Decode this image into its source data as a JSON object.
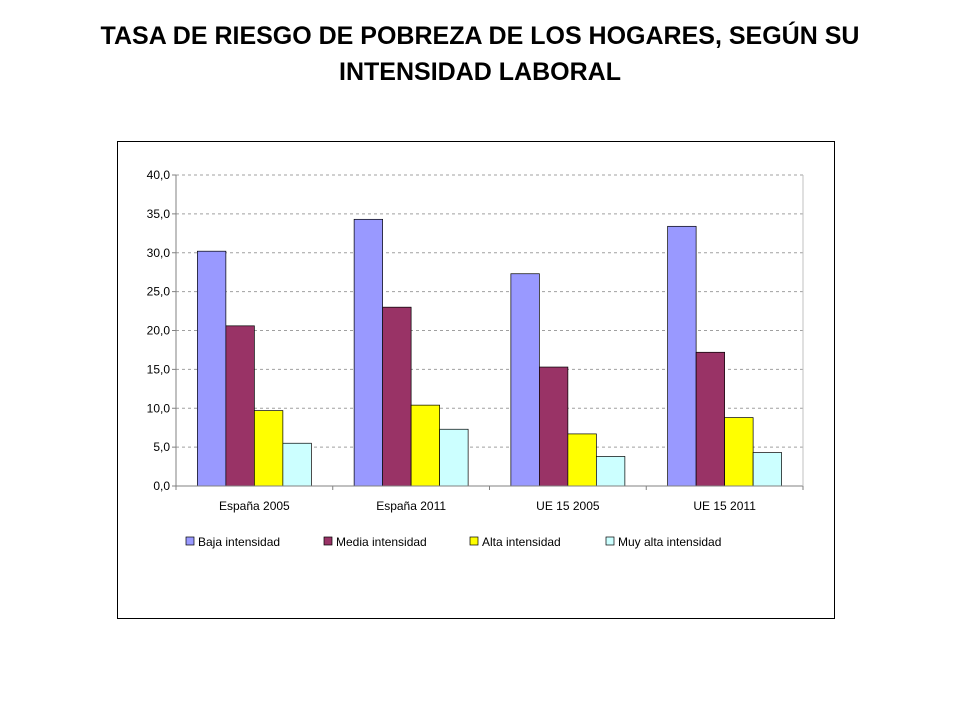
{
  "title": "TASA DE RIESGO DE POBREZA DE LOS HOGARES, SEGÚN SU INTENSIDAD LABORAL",
  "chart_data": {
    "type": "bar",
    "title": "",
    "xlabel": "",
    "ylabel": "",
    "categories": [
      "España 2005",
      "España 2011",
      "UE 15 2005",
      "UE 15 2011"
    ],
    "series": [
      {
        "name": "Baja intensidad",
        "color": "#9999FF",
        "values": [
          30.2,
          34.3,
          27.3,
          33.4
        ]
      },
      {
        "name": "Media intensidad",
        "color": "#993366",
        "values": [
          20.6,
          23.0,
          15.3,
          17.2
        ]
      },
      {
        "name": "Alta intensidad",
        "color": "#FFFF00",
        "values": [
          9.7,
          10.4,
          6.7,
          8.8
        ]
      },
      {
        "name": "Muy alta intensidad",
        "color": "#CCFFFF",
        "values": [
          5.5,
          7.3,
          3.8,
          4.3
        ]
      }
    ],
    "ylim": [
      0,
      40
    ],
    "yticks": [
      "0,0",
      "5,0",
      "10,0",
      "15,0",
      "20,0",
      "25,0",
      "30,0",
      "35,0",
      "40,0"
    ],
    "grid": true,
    "legend_position": "bottom"
  }
}
